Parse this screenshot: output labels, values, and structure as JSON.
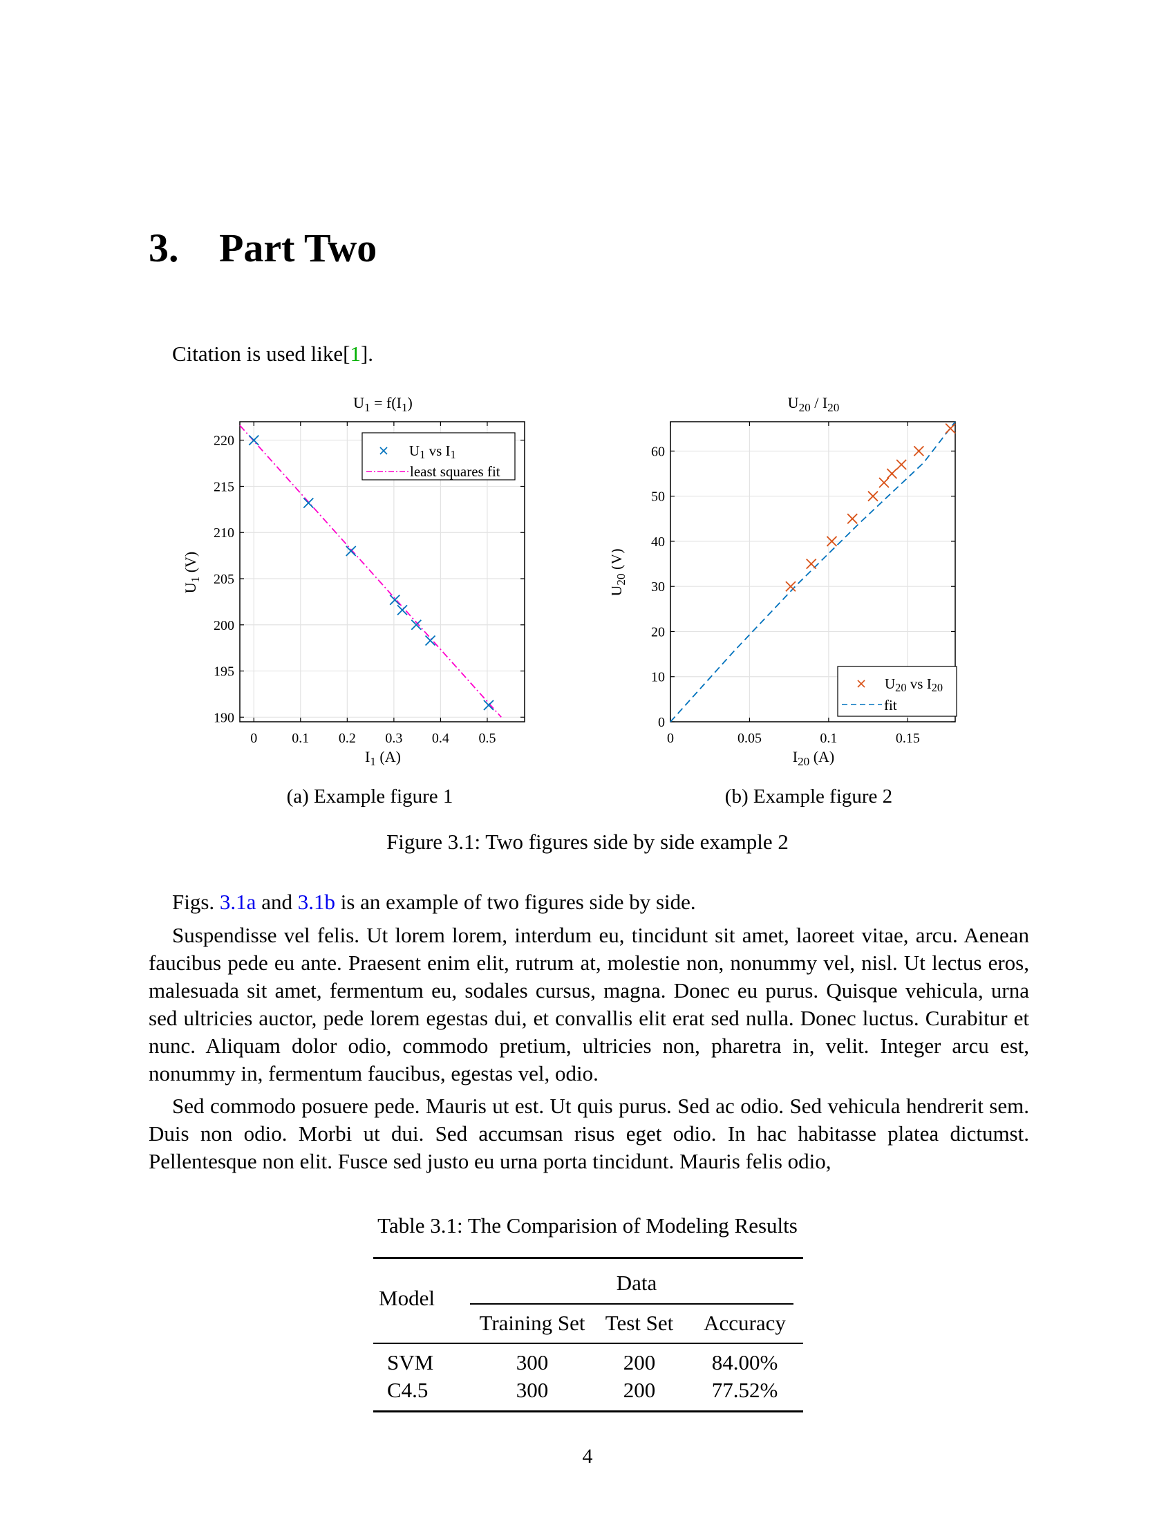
{
  "chapter": {
    "number": "3.",
    "title": "Part Two"
  },
  "intro": {
    "prefix": "Citation is used like[",
    "cite": "1",
    "suffix": "]."
  },
  "figures": [
    {
      "title": "U1 = f(I1)",
      "xlabel": "I1 (A)",
      "ylabel": "U1 (V)",
      "legend": [
        "U1 vs I1",
        "least squares fit"
      ],
      "caption": "(a) Example figure 1"
    },
    {
      "title": "U20 / I20",
      "xlabel": "I20 (A)",
      "ylabel": "U20 (V)",
      "legend": [
        "U20 vs I20",
        "fit"
      ],
      "caption": "(b) Example figure 2"
    }
  ],
  "chart_data": [
    {
      "type": "scatter",
      "title": "U1 = f(I1)",
      "xlabel": "I1 (A)",
      "ylabel": "U1 (V)",
      "xlim": [
        -0.03,
        0.58
      ],
      "ylim": [
        189.5,
        222
      ],
      "xticks": [
        "0",
        "0.1",
        "0.2",
        "0.3",
        "0.4",
        "0.5"
      ],
      "yticks": [
        "190",
        "195",
        "200",
        "205",
        "210",
        "215",
        "220"
      ],
      "grid": true,
      "legend_position": "top-right",
      "series": [
        {
          "name": "U1 vs I1",
          "marker": "x",
          "color": "#0072BD",
          "x": [
            0.0,
            0.117,
            0.208,
            0.302,
            0.318,
            0.348,
            0.378,
            0.503
          ],
          "y": [
            220.0,
            213.2,
            208.0,
            202.7,
            201.6,
            200.0,
            198.3,
            191.3
          ]
        },
        {
          "name": "least squares fit",
          "line": "dash-dot",
          "color": "#FF00CC",
          "x": [
            -0.03,
            0.53
          ],
          "y": [
            221.6,
            190.0
          ]
        }
      ]
    },
    {
      "type": "scatter",
      "title": "U20 / I20",
      "xlabel": "I20 (A)",
      "ylabel": "U20 (V)",
      "xlim": [
        0,
        0.18
      ],
      "ylim": [
        0,
        66.5
      ],
      "xticks": [
        "0",
        "0.05",
        "0.1",
        "0.15"
      ],
      "yticks": [
        "0",
        "10",
        "20",
        "30",
        "40",
        "50",
        "60"
      ],
      "grid": true,
      "legend_position": "bottom-right",
      "series": [
        {
          "name": "U20 vs I20",
          "marker": "x",
          "color": "#D95319",
          "x": [
            0.076,
            0.089,
            0.102,
            0.115,
            0.128,
            0.135,
            0.14,
            0.146,
            0.157,
            0.177
          ],
          "y": [
            30,
            35,
            40,
            45,
            50,
            53,
            55,
            57,
            60,
            65
          ]
        },
        {
          "name": "fit",
          "line": "dashed",
          "color": "#0072BD",
          "x": [
            0,
            0.04,
            0.08,
            0.12,
            0.16,
            0.18
          ],
          "y": [
            0,
            15.6,
            30.4,
            44.2,
            57.4,
            66.5
          ]
        }
      ]
    }
  ],
  "figure_caption": "Figure 3.1: Two figures side by side example 2",
  "figs_sentence": {
    "prefix": "Figs. ",
    "ref_a": "3.1a",
    "mid": " and ",
    "ref_b": "3.1b",
    "suffix": " is an example of two figures side by side."
  },
  "paragraphs": [
    "Suspendisse vel felis. Ut lorem lorem, interdum eu, tincidunt sit amet, laoreet vitae, arcu. Aenean faucibus pede eu ante. Praesent enim elit, rutrum at, molestie non, nonummy vel, nisl. Ut lectus eros, malesuada sit amet, fermentum eu, sodales cursus, magna. Donec eu purus. Quisque vehicula, urna sed ultricies auctor, pede lorem egestas dui, et convallis elit erat sed nulla. Donec luctus. Curabitur et nunc. Aliquam dolor odio, commodo pretium, ultricies non, pharetra in, velit. Integer arcu est, nonummy in, fermentum faucibus, egestas vel, odio.",
    "Sed commodo posuere pede. Mauris ut est. Ut quis purus. Sed ac odio. Sed vehicula hendrerit sem. Duis non odio. Morbi ut dui. Sed accumsan risus eget odio. In hac habitasse platea dictumst. Pellentesque non elit. Fusce sed justo eu urna porta tincidunt. Mauris felis odio,"
  ],
  "table": {
    "caption": "Table 3.1: The Comparision of Modeling Results",
    "model_header": "Model",
    "group_header": "Data",
    "columns": [
      "Training Set",
      "Test Set",
      "Accuracy"
    ],
    "rows": [
      {
        "model": "SVM",
        "values": [
          "300",
          "200",
          "84.00%"
        ]
      },
      {
        "model": "C4.5",
        "values": [
          "300",
          "200",
          "77.52%"
        ]
      }
    ]
  },
  "page_number": "4"
}
